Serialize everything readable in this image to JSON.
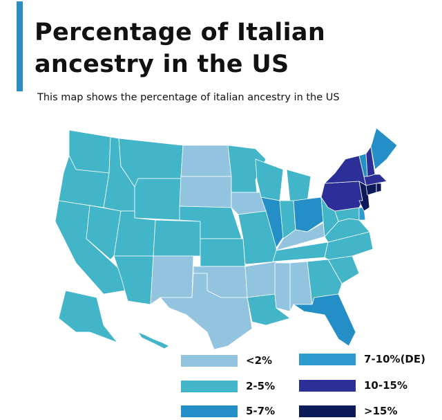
{
  "header": {
    "title_line1": "Percentage of Italian",
    "title_line2": "ancestry in the US",
    "subtitle": "This map shows the percentage of italian ancestry in the US"
  },
  "legend": [
    {
      "label": "<2%",
      "color": "#92c4df"
    },
    {
      "label": "2-5%",
      "color": "#43b5c9"
    },
    {
      "label": "5-7%",
      "color": "#248fc6"
    },
    {
      "label": "7-10%(DE)",
      "color": "#2e9bd0"
    },
    {
      "label": "10-15%",
      "color": "#2b2f97"
    },
    {
      "label": ">15%",
      "color": "#0c1a5a"
    }
  ],
  "states": [
    {
      "code": "WA",
      "cat": 1
    },
    {
      "code": "OR",
      "cat": 1
    },
    {
      "code": "CA",
      "cat": 1
    },
    {
      "code": "NV",
      "cat": 1
    },
    {
      "code": "ID",
      "cat": 1
    },
    {
      "code": "MT",
      "cat": 1
    },
    {
      "code": "WY",
      "cat": 1
    },
    {
      "code": "UT",
      "cat": 1
    },
    {
      "code": "AZ",
      "cat": 1
    },
    {
      "code": "CO",
      "cat": 1
    },
    {
      "code": "NM",
      "cat": 0
    },
    {
      "code": "ND",
      "cat": 0
    },
    {
      "code": "SD",
      "cat": 0
    },
    {
      "code": "NE",
      "cat": 1
    },
    {
      "code": "KS",
      "cat": 1
    },
    {
      "code": "OK",
      "cat": 0
    },
    {
      "code": "TX",
      "cat": 0
    },
    {
      "code": "MN",
      "cat": 1
    },
    {
      "code": "IA",
      "cat": 0
    },
    {
      "code": "MO",
      "cat": 1
    },
    {
      "code": "AR",
      "cat": 0
    },
    {
      "code": "LA",
      "cat": 1
    },
    {
      "code": "WI",
      "cat": 1
    },
    {
      "code": "IL",
      "cat": 2
    },
    {
      "code": "MI",
      "cat": 1
    },
    {
      "code": "IN",
      "cat": 1
    },
    {
      "code": "OH",
      "cat": 2
    },
    {
      "code": "KY",
      "cat": 0
    },
    {
      "code": "TN",
      "cat": 1
    },
    {
      "code": "MS",
      "cat": 0
    },
    {
      "code": "AL",
      "cat": 0
    },
    {
      "code": "GA",
      "cat": 1
    },
    {
      "code": "FL",
      "cat": 2
    },
    {
      "code": "SC",
      "cat": 1
    },
    {
      "code": "NC",
      "cat": 1
    },
    {
      "code": "VA",
      "cat": 1
    },
    {
      "code": "WV",
      "cat": 1
    },
    {
      "code": "MD",
      "cat": 1
    },
    {
      "code": "DE",
      "cat": 3
    },
    {
      "code": "PA",
      "cat": 4
    },
    {
      "code": "NJ",
      "cat": 5
    },
    {
      "code": "NY",
      "cat": 4
    },
    {
      "code": "VT",
      "cat": 2
    },
    {
      "code": "NH",
      "cat": 4
    },
    {
      "code": "ME",
      "cat": 2
    },
    {
      "code": "MA",
      "cat": 4
    },
    {
      "code": "CT",
      "cat": 5
    },
    {
      "code": "RI",
      "cat": 5
    },
    {
      "code": "AK",
      "cat": 1
    },
    {
      "code": "HI",
      "cat": 1
    }
  ]
}
